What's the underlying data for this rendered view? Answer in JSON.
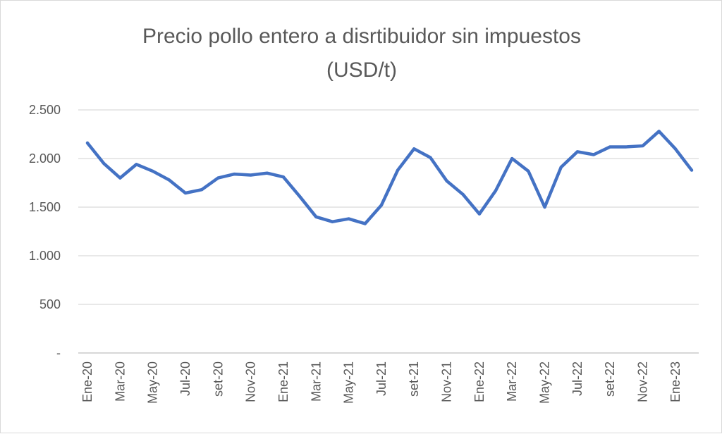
{
  "chart_data": {
    "type": "line",
    "title_line1": "Precio pollo entero a disrtibuidor sin impuestos",
    "title_line2": "(USD/t)",
    "xlabel": "",
    "ylabel": "",
    "ylim": [
      0,
      2500
    ],
    "yticks": [
      0,
      500,
      1000,
      1500,
      2000,
      2500
    ],
    "ytick_labels": [
      "-",
      "500",
      "1.000",
      "1.500",
      "2.000",
      "2.500"
    ],
    "grid": true,
    "legend": "none",
    "x": [
      "Ene-20",
      "Feb-20",
      "Mar-20",
      "Abr-20",
      "May-20",
      "Jun-20",
      "Jul-20",
      "Ago-20",
      "set-20",
      "Oct-20",
      "Nov-20",
      "Dic-20",
      "Ene-21",
      "Feb-21",
      "Mar-21",
      "Abr-21",
      "May-21",
      "Jun-21",
      "Jul-21",
      "Ago-21",
      "set-21",
      "Oct-21",
      "Nov-21",
      "Dic-21",
      "Ene-22",
      "Feb-22",
      "Mar-22",
      "Abr-22",
      "May-22",
      "Jun-22",
      "Jul-22",
      "Ago-22",
      "set-22",
      "Oct-22",
      "Nov-22",
      "Dic-22",
      "Ene-23",
      "Feb-23"
    ],
    "x_tick_labels": [
      "Ene-20",
      "Mar-20",
      "May-20",
      "Jul-20",
      "set-20",
      "Nov-20",
      "Ene-21",
      "Mar-21",
      "May-21",
      "Jul-21",
      "set-21",
      "Nov-21",
      "Ene-22",
      "Mar-22",
      "May-22",
      "Jul-22",
      "set-22",
      "Nov-22",
      "Ene-23"
    ],
    "series": [
      {
        "color": "#4472c4",
        "values": [
          2160,
          1950,
          1800,
          1940,
          1870,
          1780,
          1645,
          1680,
          1800,
          1840,
          1830,
          1850,
          1810,
          1610,
          1400,
          1350,
          1380,
          1330,
          1520,
          1880,
          2100,
          2010,
          1770,
          1630,
          1430,
          1670,
          2000,
          1870,
          1500,
          1910,
          2070,
          2040,
          2120,
          2120,
          2130,
          2280,
          2100,
          1880
        ]
      }
    ]
  }
}
